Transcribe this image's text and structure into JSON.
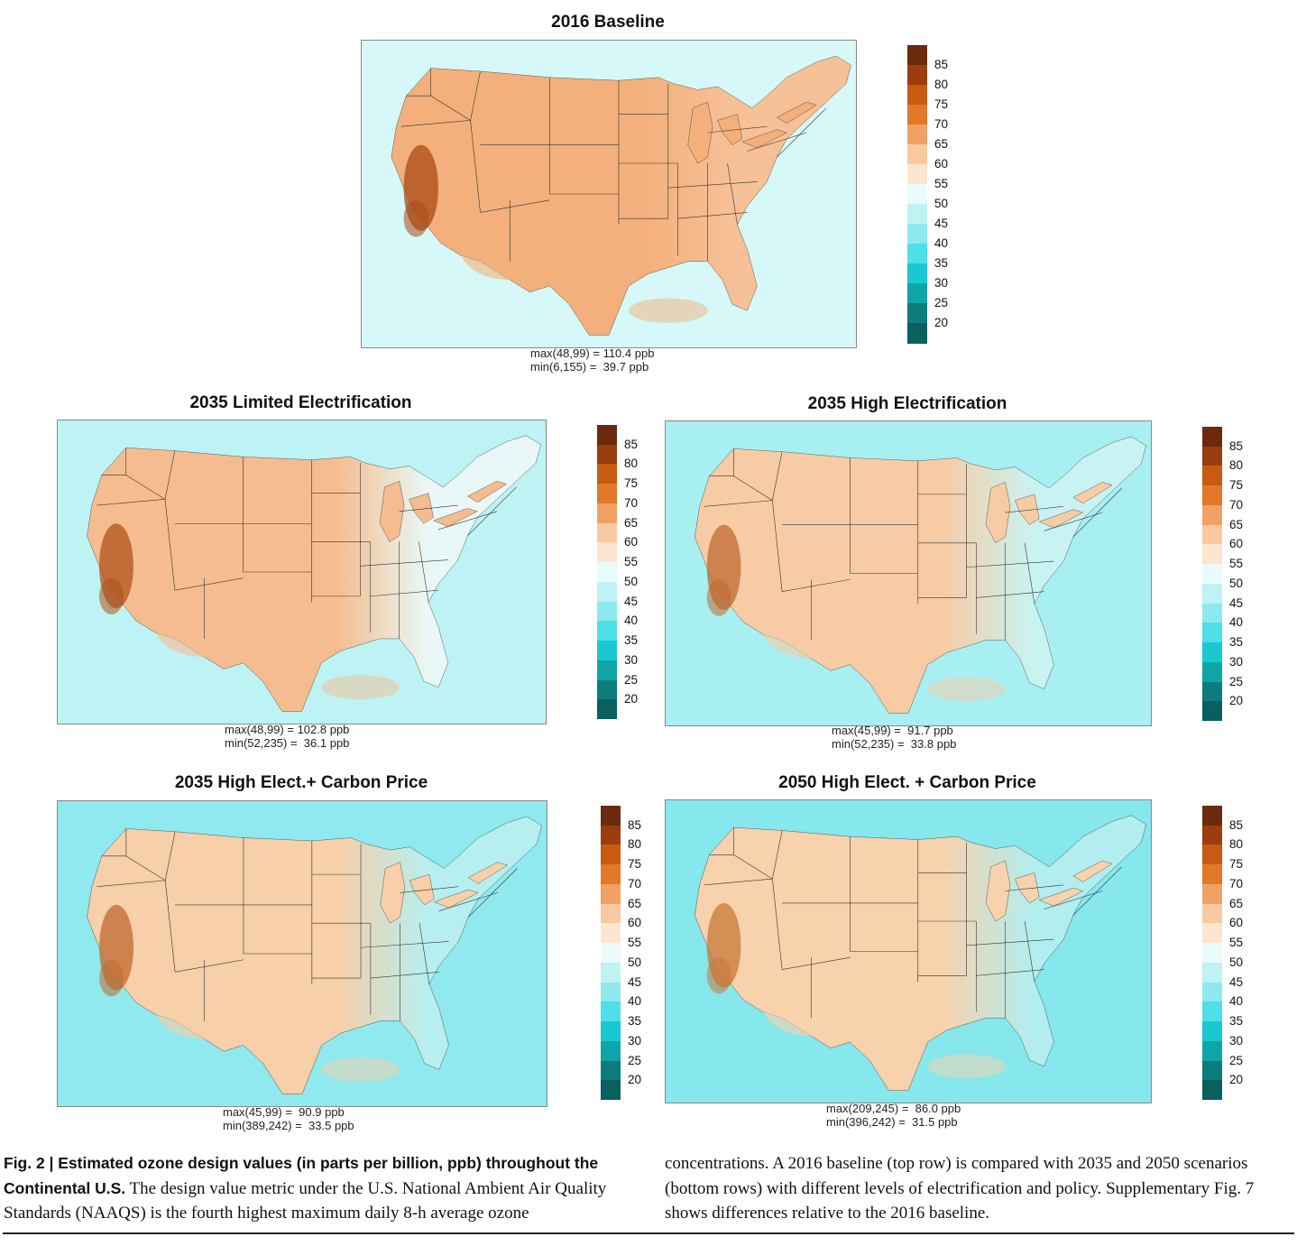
{
  "figure": {
    "caption": {
      "fig_label": "Fig. 2 |",
      "bold_title": "Estimated ozone design values (in parts per billion, ppb) throughout the Continental U.S.",
      "col1_rest": "The design value metric under the U.S. National Ambient Air Quality Standards (NAAQS) is the fourth highest maximum daily 8-h average ozone",
      "col2": "concentrations. A 2016 baseline (top row) is compared with 2035 and 2050 scenarios (bottom rows) with different levels of electrification and policy. Supplementary Fig. 7 shows differences relative to the 2016 baseline."
    },
    "colorbar": {
      "labels": [
        "85",
        "80",
        "75",
        "70",
        "65",
        "60",
        "55",
        "50",
        "45",
        "40",
        "35",
        "30",
        "25",
        "20"
      ],
      "colors": [
        "#6b2a0c",
        "#9a3d0f",
        "#c85a12",
        "#e07a28",
        "#f2a165",
        "#f8c9a0",
        "#fde6cf",
        "#e9fbfb",
        "#bff2f3",
        "#8de9ee",
        "#4fdfe8",
        "#18c9d2",
        "#0fa5a8",
        "#0c7c7c",
        "#0a5f5f"
      ]
    },
    "panels": [
      {
        "title": "2016 Baseline",
        "max_line": "max(48,99) = 110.4 ppb",
        "min_line": "min(6,155) =  39.7 ppb",
        "fill_west": "#f3b07c",
        "fill_east": "#f6c197",
        "fill_ocean": "#d7f8f8",
        "hot": "#a94a14"
      },
      {
        "title": "2035 Limited Electrification",
        "max_line": "max(48,99) = 102.8 ppb",
        "min_line": "min(52,235) =  36.1 ppb",
        "fill_west": "#f5bd8f",
        "fill_east": "#e9f8f6",
        "fill_ocean": "#bdf3f4",
        "hot": "#b0521a"
      },
      {
        "title": "2035 High Electrification",
        "max_line": "max(45,99) =  91.7 ppb",
        "min_line": "min(52,235) =  33.8 ppb",
        "fill_west": "#f7cca5",
        "fill_east": "#c9f3f2",
        "fill_ocean": "#a8eff2",
        "hot": "#c06a30"
      },
      {
        "title": "2035 High Elect.+ Carbon Price",
        "max_line": "max(45,99) =  90.9 ppb",
        "min_line": "min(389,242) =  33.5 ppb",
        "fill_west": "#f7cfa8",
        "fill_east": "#b7eff0",
        "fill_ocean": "#8fe9ee",
        "hot": "#c06a30"
      },
      {
        "title": "2050 High Elect. + Carbon Price",
        "max_line": "max(209,245) =  86.0 ppb",
        "min_line": "min(396,242) =  31.5 ppb",
        "fill_west": "#f7d2ad",
        "fill_east": "#b2eeef",
        "fill_ocean": "#86e7ec",
        "hot": "#c87838"
      }
    ]
  }
}
